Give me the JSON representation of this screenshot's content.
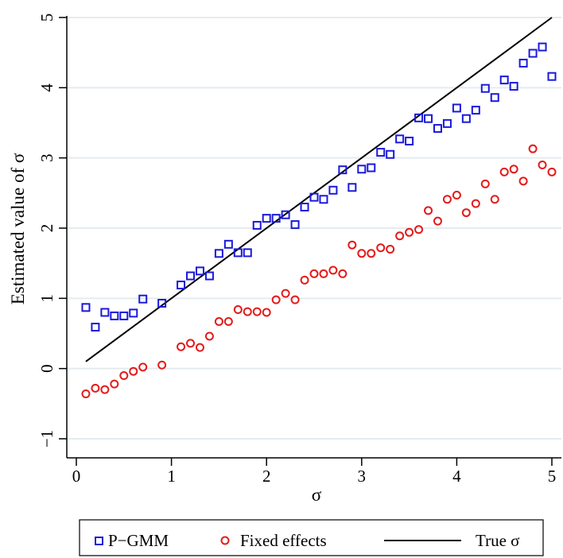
{
  "chart_data": {
    "type": "scatter",
    "xlabel": "σ",
    "ylabel": "Estimated value of σ",
    "xlim": [
      0,
      5
    ],
    "ylim": [
      -1,
      5
    ],
    "xticks": [
      "0",
      "1",
      "2",
      "3",
      "4",
      "5"
    ],
    "yticks": [
      "−1",
      "0",
      "1",
      "2",
      "3",
      "4",
      "5"
    ],
    "grid": "horizontal",
    "legend_position": "bottom",
    "series": [
      {
        "name": "P−GMM",
        "marker": "square",
        "color": "#1a1adb",
        "x": [
          0.1,
          0.2,
          0.3,
          0.4,
          0.5,
          0.6,
          0.7,
          0.9,
          1.1,
          1.2,
          1.3,
          1.4,
          1.5,
          1.6,
          1.7,
          1.8,
          1.9,
          2.0,
          2.1,
          2.2,
          2.3,
          2.4,
          2.5,
          2.6,
          2.7,
          2.8,
          2.9,
          3.0,
          3.1,
          3.2,
          3.3,
          3.4,
          3.5,
          3.6,
          3.7,
          3.8,
          3.9,
          4.0,
          4.1,
          4.2,
          4.3,
          4.4,
          4.5,
          4.6,
          4.7,
          4.8,
          4.9,
          5.0
        ],
        "y": [
          0.87,
          0.59,
          0.8,
          0.75,
          0.75,
          0.79,
          0.99,
          0.93,
          1.19,
          1.32,
          1.39,
          1.32,
          1.64,
          1.77,
          1.65,
          1.65,
          2.04,
          2.14,
          2.14,
          2.19,
          2.05,
          2.3,
          2.44,
          2.41,
          2.54,
          2.83,
          2.58,
          2.84,
          2.86,
          3.08,
          3.05,
          3.27,
          3.24,
          3.57,
          3.56,
          3.42,
          3.49,
          3.71,
          3.56,
          3.68,
          3.99,
          3.86,
          4.11,
          4.02,
          4.35,
          4.49,
          4.58,
          4.16
        ]
      },
      {
        "name": "Fixed effects",
        "marker": "circle",
        "color": "#e41a1a",
        "x": [
          0.1,
          0.2,
          0.3,
          0.4,
          0.5,
          0.6,
          0.7,
          0.9,
          1.1,
          1.2,
          1.3,
          1.4,
          1.5,
          1.6,
          1.7,
          1.8,
          1.9,
          2.0,
          2.1,
          2.2,
          2.3,
          2.4,
          2.5,
          2.6,
          2.7,
          2.8,
          2.9,
          3.0,
          3.1,
          3.2,
          3.3,
          3.4,
          3.5,
          3.6,
          3.7,
          3.8,
          3.9,
          4.0,
          4.1,
          4.2,
          4.3,
          4.4,
          4.5,
          4.6,
          4.7,
          4.8,
          4.9,
          5.0
        ],
        "y": [
          -0.36,
          -0.28,
          -0.3,
          -0.22,
          -0.1,
          -0.04,
          0.02,
          0.05,
          0.31,
          0.36,
          0.3,
          0.46,
          0.67,
          0.67,
          0.84,
          0.81,
          0.81,
          0.8,
          0.98,
          1.07,
          0.98,
          1.26,
          1.35,
          1.35,
          1.4,
          1.35,
          1.76,
          1.64,
          1.64,
          1.72,
          1.7,
          1.89,
          1.94,
          1.98,
          2.25,
          2.1,
          2.41,
          2.47,
          2.22,
          2.35,
          2.63,
          2.41,
          2.8,
          2.84,
          2.67,
          3.13,
          2.9,
          2.8
        ]
      },
      {
        "name": "True σ",
        "marker": "line",
        "color": "#000000",
        "x": [
          0.1,
          5.0
        ],
        "y": [
          0.1,
          5.0
        ]
      }
    ]
  }
}
